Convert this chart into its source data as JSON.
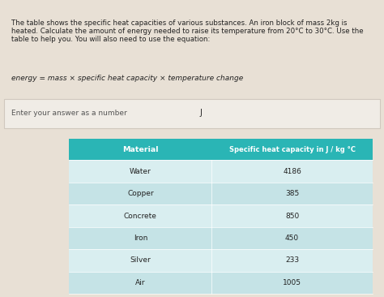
{
  "title_text": "The table shows the specific heat capacities of various substances. An iron block of mass 2kg is\nheated. Calculate the amount of energy needed to raise its temperature from 20°C to 30°C. Use the\ntable to help you. You will also need to use the equation:",
  "equation": "energy = mass × specific heat capacity × temperature change",
  "answer_label": "Enter your answer as a number",
  "answer_unit": "J",
  "col_header_1": "Material",
  "col_header_2": "Specific heat capacity in J / kg °C",
  "materials": [
    "Water",
    "Copper",
    "Concrete",
    "Iron",
    "Silver",
    "Air"
  ],
  "values": [
    "4186",
    "385",
    "850",
    "450",
    "233",
    "1005"
  ],
  "header_bg": "#2ab5b5",
  "header_text_color": "#ffffff",
  "row_bg_odd": "#d9eef0",
  "row_bg_even": "#c5e3e6",
  "top_bg": "#e8e0d5",
  "answer_bg": "#f0ece6",
  "answer_border": "#d0c8be",
  "bottom_bg": "#dce8ea",
  "text_color": "#222222",
  "equation_color": "#222222",
  "answer_text_color": "#555555",
  "sep_color": "#b0a898"
}
